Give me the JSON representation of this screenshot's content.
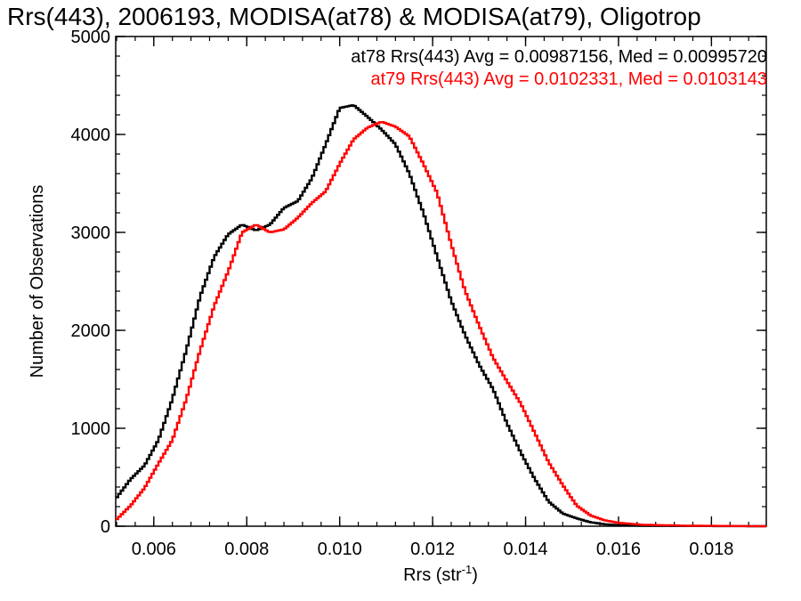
{
  "chart_data": {
    "type": "line",
    "title": "Rrs(443), 2006193, MODISA(at78) & MODISA(at79), Oligotrop",
    "xlabel": "Rrs (str",
    "xlabel_sup": "-1",
    "xlabel_close": ")",
    "ylabel": "Number of Observations",
    "xlim": [
      0.00518,
      0.01918
    ],
    "ylim": [
      0,
      5000
    ],
    "x_ticks": [
      0.006,
      0.008,
      0.01,
      0.012,
      0.014,
      0.016,
      0.018
    ],
    "x_tick_labels": [
      "0.006",
      "0.008",
      "0.010",
      "0.012",
      "0.014",
      "0.016",
      "0.018"
    ],
    "y_ticks": [
      0,
      1000,
      2000,
      3000,
      4000,
      5000
    ],
    "y_tick_labels": [
      "0",
      "1000",
      "2000",
      "3000",
      "4000",
      "5000"
    ],
    "grid": false,
    "legend_placement": "top-right",
    "series": [
      {
        "name": "at78",
        "color": "#000000",
        "annotation": "at78 Rrs(443) Avg = 0.00987156, Med = 0.00995720",
        "points": [
          [
            0.00518,
            280
          ],
          [
            0.0055,
            480
          ],
          [
            0.0058,
            620
          ],
          [
            0.0061,
            880
          ],
          [
            0.0064,
            1300
          ],
          [
            0.0067,
            1800
          ],
          [
            0.007,
            2350
          ],
          [
            0.0073,
            2750
          ],
          [
            0.0076,
            2980
          ],
          [
            0.0079,
            3080
          ],
          [
            0.0082,
            3020
          ],
          [
            0.0085,
            3080
          ],
          [
            0.0088,
            3250
          ],
          [
            0.0091,
            3320
          ],
          [
            0.0094,
            3550
          ],
          [
            0.0097,
            3900
          ],
          [
            0.01,
            4270
          ],
          [
            0.0103,
            4300
          ],
          [
            0.0106,
            4180
          ],
          [
            0.0109,
            4050
          ],
          [
            0.0112,
            3900
          ],
          [
            0.0115,
            3600
          ],
          [
            0.0118,
            3200
          ],
          [
            0.0121,
            2750
          ],
          [
            0.0124,
            2300
          ],
          [
            0.0127,
            1950
          ],
          [
            0.013,
            1650
          ],
          [
            0.0133,
            1400
          ],
          [
            0.0136,
            1050
          ],
          [
            0.0139,
            750
          ],
          [
            0.0142,
            480
          ],
          [
            0.0145,
            250
          ],
          [
            0.0148,
            130
          ],
          [
            0.0151,
            80
          ],
          [
            0.0154,
            40
          ],
          [
            0.0157,
            20
          ],
          [
            0.016,
            10
          ],
          [
            0.0165,
            5
          ],
          [
            0.0175,
            2
          ],
          [
            0.01918,
            0
          ]
        ]
      },
      {
        "name": "at79",
        "color": "#ff0000",
        "annotation": "at79 Rrs(443) Avg = 0.0102331, Med = 0.0103143",
        "points": [
          [
            0.00518,
            60
          ],
          [
            0.0055,
            210
          ],
          [
            0.0058,
            390
          ],
          [
            0.0061,
            640
          ],
          [
            0.0064,
            880
          ],
          [
            0.0067,
            1300
          ],
          [
            0.007,
            1800
          ],
          [
            0.0073,
            2250
          ],
          [
            0.0076,
            2600
          ],
          [
            0.0079,
            3000
          ],
          [
            0.0082,
            3080
          ],
          [
            0.0085,
            3000
          ],
          [
            0.0088,
            3030
          ],
          [
            0.0091,
            3150
          ],
          [
            0.0094,
            3300
          ],
          [
            0.0097,
            3420
          ],
          [
            0.01,
            3700
          ],
          [
            0.0103,
            3950
          ],
          [
            0.0106,
            4070
          ],
          [
            0.0109,
            4130
          ],
          [
            0.0112,
            4080
          ],
          [
            0.0115,
            3980
          ],
          [
            0.0118,
            3700
          ],
          [
            0.0121,
            3400
          ],
          [
            0.0124,
            2880
          ],
          [
            0.0127,
            2400
          ],
          [
            0.013,
            2050
          ],
          [
            0.0133,
            1720
          ],
          [
            0.0136,
            1480
          ],
          [
            0.0139,
            1250
          ],
          [
            0.0142,
            950
          ],
          [
            0.0145,
            650
          ],
          [
            0.0148,
            420
          ],
          [
            0.0151,
            210
          ],
          [
            0.0154,
            110
          ],
          [
            0.0157,
            60
          ],
          [
            0.016,
            35
          ],
          [
            0.0165,
            15
          ],
          [
            0.0175,
            5
          ],
          [
            0.01918,
            0
          ]
        ]
      }
    ]
  }
}
